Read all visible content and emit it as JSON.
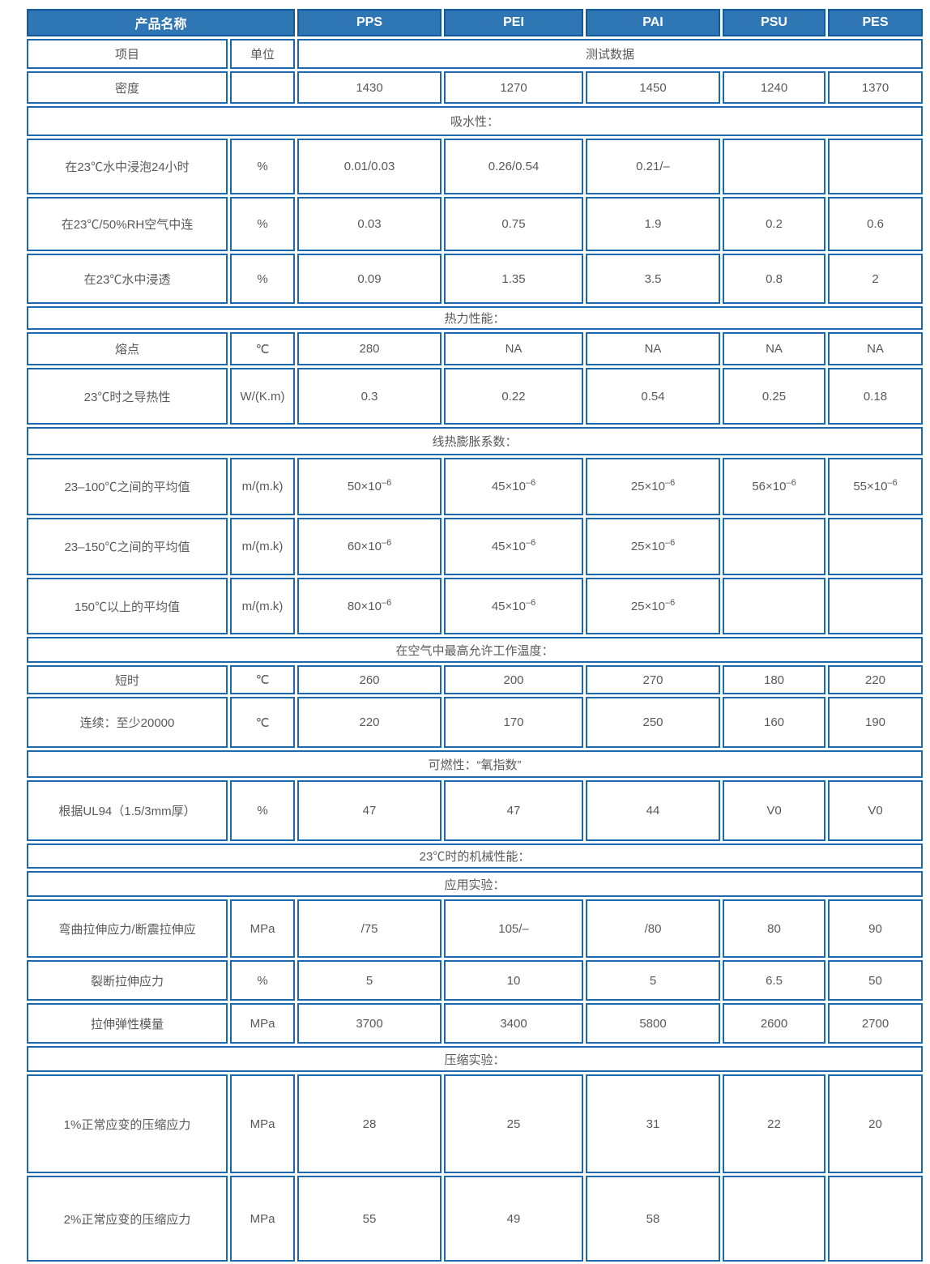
{
  "colors": {
    "header_bg": "#2F76B5",
    "header_border": "#14589D",
    "cell_border": "#1C69B0",
    "header_text": "#FFFFFF",
    "body_text": "#58595B"
  },
  "table": {
    "header": {
      "product_label": "产品名称",
      "products": [
        "PPS",
        "PEI",
        "PAI",
        "PSU",
        "PES"
      ]
    },
    "subheader": {
      "item_label": "项目",
      "unit_label": "单位",
      "test_data_label": "测试数据"
    },
    "rows": [
      {
        "type": "data",
        "label": "密度",
        "unit": "",
        "values": [
          "1430",
          "1270",
          "1450",
          "1240",
          "1370"
        ]
      },
      {
        "type": "section",
        "label": "吸水性："
      },
      {
        "type": "data",
        "label": "在23℃水中浸泡24小时",
        "unit": "%",
        "values": [
          "0.01/0.03",
          "0.26/0.54",
          "0.21/–",
          "",
          ""
        ]
      },
      {
        "type": "data",
        "label": "在23℃/50%RH空气中连",
        "unit": "%",
        "values": [
          "0.03",
          "0.75",
          "1.9",
          "0.2",
          "0.6"
        ]
      },
      {
        "type": "data",
        "label": "在23℃水中浸透",
        "unit": "%",
        "values": [
          "0.09",
          "1.35",
          "3.5",
          "0.8",
          "2"
        ]
      },
      {
        "type": "section",
        "label": "热力性能："
      },
      {
        "type": "data",
        "label": "熔点",
        "unit": "℃",
        "values": [
          "280",
          "NA",
          "NA",
          "NA",
          "NA"
        ]
      },
      {
        "type": "data",
        "label": "23℃时之导热性",
        "unit": "W/(K.m)",
        "values": [
          "0.3",
          "0.22",
          "0.54",
          "0.25",
          "0.18"
        ]
      },
      {
        "type": "section",
        "label": "线热膨胀系数："
      },
      {
        "type": "data",
        "label": "23–100℃之间的平均值",
        "unit": "m/(m.k)",
        "values": [
          "50×10^–6",
          "45×10^–6",
          "25×10^–6",
          "56×10^–6",
          "55×10^–6"
        ]
      },
      {
        "type": "data",
        "label": "23–150℃之间的平均值",
        "unit": "m/(m.k)",
        "values": [
          "60×10^–6",
          "45×10^–6",
          "25×10^–6",
          "",
          ""
        ]
      },
      {
        "type": "data",
        "label": "150℃以上的平均值",
        "unit": "m/(m.k)",
        "values": [
          "80×10^–6",
          "45×10^–6",
          "25×10^–6",
          "",
          ""
        ]
      },
      {
        "type": "section",
        "label": "在空气中最高允许工作温度："
      },
      {
        "type": "data",
        "label": "短时",
        "unit": "℃",
        "values": [
          "260",
          "200",
          "270",
          "180",
          "220"
        ]
      },
      {
        "type": "data",
        "label": "连续：至少20000",
        "unit": "℃",
        "values": [
          "220",
          "170",
          "250",
          "160",
          "190"
        ]
      },
      {
        "type": "section",
        "label": "可燃性：“氧指数”"
      },
      {
        "type": "data",
        "label": "根据UL94（1.5/3mm厚）",
        "unit": "%",
        "values": [
          "47",
          "47",
          "44",
          "V0",
          "V0"
        ]
      },
      {
        "type": "section",
        "label": "23℃时的机械性能："
      },
      {
        "type": "section",
        "label": "应用实验："
      },
      {
        "type": "data",
        "label": "弯曲拉伸应力/断震拉伸应",
        "unit": "MPa",
        "values": [
          "/75",
          "105/–",
          "/80",
          "80",
          "90"
        ]
      },
      {
        "type": "data",
        "label": "裂断拉伸应力",
        "unit": "%",
        "values": [
          "5",
          "10",
          "5",
          "6.5",
          "50"
        ]
      },
      {
        "type": "data",
        "label": "拉伸弹性模量",
        "unit": "MPa",
        "values": [
          "3700",
          "3400",
          "5800",
          "2600",
          "2700"
        ]
      },
      {
        "type": "section",
        "label": "压缩实验："
      },
      {
        "type": "data",
        "label": "1%正常应变的压缩应力",
        "unit": "MPa",
        "values": [
          "28",
          "25",
          "31",
          "22",
          "20"
        ]
      },
      {
        "type": "data",
        "label": "2%正常应变的压缩应力",
        "unit": "MPa",
        "values": [
          "55",
          "49",
          "58",
          "",
          ""
        ]
      }
    ]
  }
}
